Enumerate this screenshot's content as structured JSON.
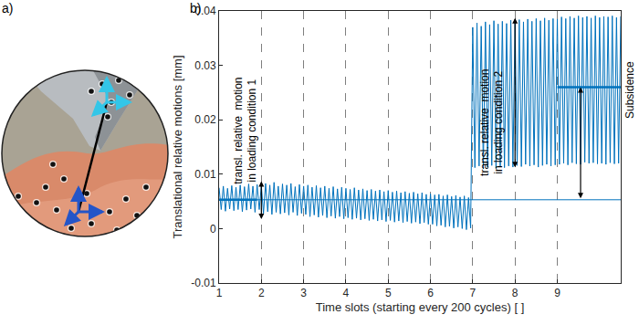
{
  "panel_labels": [
    "a)",
    "b)"
  ],
  "chart_data": {
    "type": "line",
    "color": "#0072bd",
    "x_label": "Time slots (starting every 200 cycles) [ ]",
    "y_label": "Translational relative motions [mm]",
    "xlim": [
      1,
      10.5
    ],
    "xticks": [
      1,
      2,
      3,
      4,
      5,
      6,
      7,
      8,
      9
    ],
    "ylim": [
      -0.01,
      0.04
    ],
    "yticks": [
      -0.01,
      0,
      0.01,
      0.02,
      0.03,
      0.04
    ],
    "grid": "x",
    "x": [
      1,
      1.05,
      1.1,
      1.15,
      1.2,
      1.25,
      1.3,
      1.35,
      1.4,
      1.45,
      1.5,
      1.55,
      1.6,
      1.65,
      1.7,
      1.75,
      1.8,
      1.85,
      1.9,
      1.95,
      2,
      2.05,
      2.1,
      2.15,
      2.2,
      2.25,
      2.3,
      2.35,
      2.4,
      2.45,
      2.5,
      2.55,
      2.6,
      2.65,
      2.7,
      2.75,
      2.8,
      2.85,
      2.9,
      2.95,
      3,
      3.05,
      3.1,
      3.15,
      3.2,
      3.25,
      3.3,
      3.35,
      3.4,
      3.45,
      3.5,
      3.55,
      3.6,
      3.65,
      3.7,
      3.75,
      3.8,
      3.85,
      3.9,
      3.95,
      4,
      4.05,
      4.1,
      4.15,
      4.2,
      4.25,
      4.3,
      4.35,
      4.4,
      4.45,
      4.5,
      4.55,
      4.6,
      4.65,
      4.7,
      4.75,
      4.8,
      4.85,
      4.9,
      4.95,
      5,
      5.05,
      5.1,
      5.15,
      5.2,
      5.25,
      5.3,
      5.35,
      5.4,
      5.45,
      5.5,
      5.55,
      5.6,
      5.65,
      5.7,
      5.75,
      5.8,
      5.85,
      5.9,
      5.95,
      6,
      6.05,
      6.1,
      6.15,
      6.2,
      6.25,
      6.3,
      6.35,
      6.4,
      6.45,
      6.5,
      6.55,
      6.6,
      6.65,
      6.7,
      6.75,
      6.8,
      6.85,
      6.9,
      6.95,
      7,
      7.05,
      7.1,
      7.15,
      7.2,
      7.25,
      7.3,
      7.35,
      7.4,
      7.45,
      7.5,
      7.55,
      7.6,
      7.65,
      7.7,
      7.75,
      7.8,
      7.85,
      7.9,
      7.95,
      8,
      8.05,
      8.1,
      8.15,
      8.2,
      8.25,
      8.3,
      8.35,
      8.4,
      8.45,
      8.5,
      8.55,
      8.6,
      8.65,
      8.7,
      8.75,
      8.8,
      8.85,
      8.9,
      8.95,
      9,
      9.05,
      9.1,
      9.15,
      9.2,
      9.25,
      9.3,
      9.35,
      9.4,
      9.45,
      9.5,
      9.55,
      9.6,
      9.65,
      9.7,
      9.75,
      9.8,
      9.85,
      9.9,
      9.95,
      10,
      10.05,
      10.1,
      10.15,
      10.2,
      10.25,
      10.3,
      10.35,
      10.4,
      10.45,
      10.5
    ],
    "values": [
      0.0075,
      0.0035,
      0.0078,
      0.0032,
      0.0074,
      0.0036,
      0.0079,
      0.0033,
      0.0076,
      0.0035,
      0.008,
      0.0031,
      0.0077,
      0.0034,
      0.0082,
      0.0036,
      0.0078,
      0.003,
      0.0081,
      0.0035,
      0.0079,
      0.0028,
      0.0083,
      0.0031,
      0.008,
      0.0026,
      0.0085,
      0.003,
      0.0078,
      0.0027,
      0.0082,
      0.0029,
      0.008,
      0.0025,
      0.0083,
      0.003,
      0.0077,
      0.0024,
      0.0081,
      0.0028,
      0.0078,
      0.0026,
      0.008,
      0.0022,
      0.0076,
      0.0025,
      0.0079,
      0.0021,
      0.0075,
      0.0024,
      0.0078,
      0.002,
      0.0074,
      0.0023,
      0.0077,
      0.0019,
      0.0073,
      0.0022,
      0.0076,
      0.0018,
      0.0074,
      0.002,
      0.0072,
      0.0017,
      0.0075,
      0.0019,
      0.0071,
      0.0016,
      0.0073,
      0.0018,
      0.007,
      0.0015,
      0.0072,
      0.0017,
      0.0069,
      0.0014,
      0.0071,
      0.0016,
      0.0068,
      0.0013,
      0.007,
      0.0015,
      0.0067,
      0.0012,
      0.0069,
      0.0014,
      0.0066,
      0.0011,
      0.0068,
      0.0013,
      0.0065,
      0.001,
      0.0067,
      0.0012,
      0.0064,
      0.0009,
      0.0066,
      0.0011,
      0.0063,
      0.0008,
      0.0064,
      0.0008,
      0.0062,
      0.0005,
      0.0063,
      0.0006,
      0.006,
      0.0003,
      0.0062,
      0.0004,
      0.0059,
      0.0001,
      0.0061,
      0.0003,
      0.0058,
      0,
      0.006,
      -0.0002,
      0.0057,
      0.0001,
      0.037,
      0.0112,
      0.0378,
      0.0115,
      0.0372,
      0.011,
      0.038,
      0.0113,
      0.0375,
      0.0116,
      0.0382,
      0.0111,
      0.0376,
      0.0114,
      0.0381,
      0.0112,
      0.0377,
      0.0115,
      0.0383,
      0.0113,
      0.0379,
      0.0116,
      0.0384,
      0.0114,
      0.038,
      0.0118,
      0.0385,
      0.0115,
      0.0381,
      0.0117,
      0.0386,
      0.0113,
      0.0382,
      0.0116,
      0.0387,
      0.0118,
      0.0383,
      0.0115,
      0.0386,
      0.0117,
      0.0385,
      0.0118,
      0.0389,
      0.012,
      0.0386,
      0.0117,
      0.039,
      0.0121,
      0.0387,
      0.0119,
      0.0391,
      0.0118,
      0.0388,
      0.0122,
      0.039,
      0.012,
      0.0387,
      0.0121,
      0.0391,
      0.0119,
      0.0388,
      0.012,
      0.039,
      0.0118,
      0.0389,
      0.0121,
      0.0391,
      0.0119,
      0.0388,
      0.012,
      0.039
    ],
    "baseline": 0.0053,
    "mean_lines": [
      {
        "x": [
          1,
          1.9
        ],
        "y": 0.0053
      },
      {
        "x": [
          9,
          10.5
        ],
        "y": 0.026
      }
    ],
    "annotations": [
      {
        "lines": [
          "transl. relative  motion",
          "in loading condition 1"
        ],
        "arrow": {
          "x": 2.0,
          "y": [
            0.0015,
            0.0087
          ]
        }
      },
      {
        "lines": [
          "transl. relative  motion",
          "in loading condition 2"
        ],
        "arrow": {
          "x": 8.0,
          "y": [
            0.011,
            0.0387
          ]
        }
      },
      {
        "lines": [
          "Subsidence"
        ],
        "arrow": {
          "x": 9.55,
          "y": [
            0.0053,
            0.026
          ]
        }
      }
    ]
  }
}
